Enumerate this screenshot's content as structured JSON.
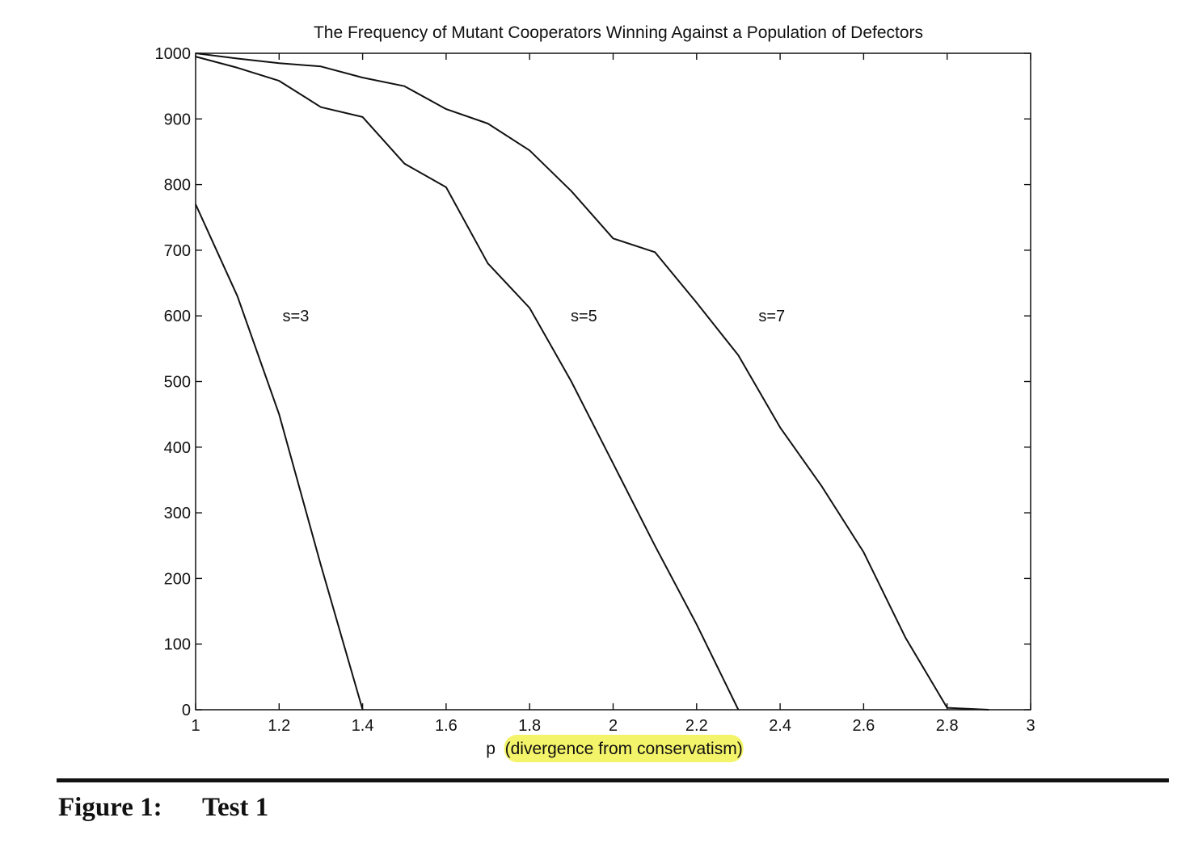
{
  "chart_data": {
    "type": "line",
    "title": "The Frequency of Mutant Cooperators Winning Against a Population of Defectors",
    "xlabel": "p  (divergence from conservatism)",
    "ylabel": "",
    "xlim": [
      1,
      3
    ],
    "ylim": [
      0,
      1000
    ],
    "xticks": [
      1,
      1.2,
      1.4,
      1.6,
      1.8,
      2,
      2.2,
      2.4,
      2.6,
      2.8,
      3
    ],
    "xtick_labels": [
      "1",
      "1.2",
      "1.4",
      "1.6",
      "1.8",
      "2",
      "2.2",
      "2.4",
      "2.6",
      "2.8",
      "3"
    ],
    "yticks": [
      0,
      100,
      200,
      300,
      400,
      500,
      600,
      700,
      800,
      900,
      1000
    ],
    "ytick_labels": [
      "0",
      "100",
      "200",
      "300",
      "400",
      "500",
      "600",
      "700",
      "800",
      "900",
      "1000"
    ],
    "grid": false,
    "highlight": {
      "text": "divergence from conservatism",
      "color": "#f4f46a"
    },
    "series": [
      {
        "name": "s=3",
        "label_pos": [
          1.24,
          600
        ],
        "x": [
          1.0,
          1.1,
          1.2,
          1.3,
          1.4
        ],
        "y": [
          770,
          630,
          450,
          220,
          0
        ]
      },
      {
        "name": "s=5",
        "label_pos": [
          1.93,
          600
        ],
        "x": [
          1.0,
          1.1,
          1.2,
          1.3,
          1.4,
          1.5,
          1.6,
          1.7,
          1.8,
          1.9,
          2.0,
          2.1,
          2.2,
          2.3
        ],
        "y": [
          995,
          978,
          958,
          918,
          903,
          832,
          796,
          680,
          612,
          500,
          375,
          250,
          130,
          0
        ]
      },
      {
        "name": "s=7",
        "label_pos": [
          2.38,
          600
        ],
        "x": [
          1.0,
          1.1,
          1.2,
          1.3,
          1.4,
          1.5,
          1.6,
          1.7,
          1.8,
          1.9,
          2.0,
          2.1,
          2.2,
          2.3,
          2.4,
          2.5,
          2.6,
          2.7,
          2.8,
          2.9
        ],
        "y": [
          1000,
          992,
          985,
          980,
          963,
          950,
          915,
          893,
          852,
          790,
          718,
          697,
          620,
          540,
          430,
          340,
          240,
          110,
          3,
          0
        ]
      }
    ],
    "line_color": "#111111"
  },
  "caption": {
    "label": "Figure 1:",
    "text": "Test 1"
  }
}
